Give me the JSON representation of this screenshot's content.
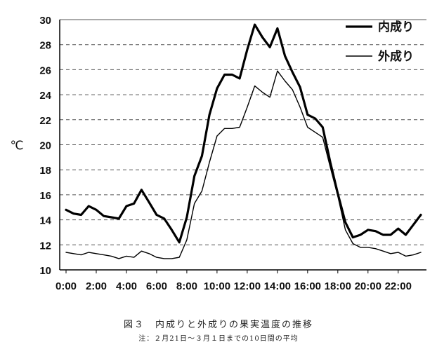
{
  "chart_data": {
    "type": "line",
    "ylabel": "℃",
    "ylim": [
      10,
      30
    ],
    "yticks": [
      10,
      12,
      14,
      16,
      18,
      20,
      22,
      24,
      26,
      28,
      30
    ],
    "xlim": [
      0,
      23.5
    ],
    "xticks": [
      "0:00",
      "2:00",
      "4:00",
      "6:00",
      "8:00",
      "10:00",
      "12:00",
      "14:00",
      "16:00",
      "18:00",
      "20:00",
      "22:00"
    ],
    "grid": "horizontal dashed",
    "legend_position": "top-right",
    "x": [
      0,
      0.5,
      1,
      1.5,
      2,
      2.5,
      3,
      3.5,
      4,
      4.5,
      5,
      5.5,
      6,
      6.5,
      7,
      7.5,
      8,
      8.5,
      9,
      9.5,
      10,
      10.5,
      11,
      11.5,
      12,
      12.5,
      13,
      13.5,
      14,
      14.5,
      15,
      15.5,
      16,
      16.5,
      17,
      17.5,
      18,
      18.5,
      19,
      19.5,
      20,
      20.5,
      21,
      21.5,
      22,
      22.5,
      23,
      23.5
    ],
    "series": [
      {
        "name": "内成り",
        "color": "#000000",
        "values": [
          14.8,
          14.5,
          14.4,
          15.1,
          14.8,
          14.3,
          14.2,
          14.1,
          15.1,
          15.3,
          16.4,
          15.4,
          14.4,
          14.1,
          13.2,
          12.2,
          14.2,
          17.5,
          19.1,
          22.4,
          24.5,
          25.6,
          25.6,
          25.3,
          27.6,
          29.6,
          28.6,
          27.8,
          29.3,
          27.1,
          25.8,
          24.6,
          22.4,
          22.1,
          21.4,
          18.6,
          16.1,
          13.8,
          12.6,
          12.8,
          13.2,
          13.1,
          12.8,
          12.8,
          13.3,
          12.8,
          13.6,
          14.4
        ]
      },
      {
        "name": "外成り",
        "color": "#000000",
        "values": [
          11.4,
          11.3,
          11.2,
          11.4,
          11.3,
          11.2,
          11.1,
          10.9,
          11.1,
          11.0,
          11.5,
          11.3,
          11.0,
          10.9,
          10.9,
          11.0,
          12.4,
          15.3,
          16.3,
          18.6,
          20.7,
          21.3,
          21.3,
          21.4,
          23.0,
          24.7,
          24.2,
          23.8,
          25.9,
          25.1,
          24.4,
          23.0,
          21.4,
          21.0,
          20.6,
          18.2,
          15.9,
          13.2,
          12.1,
          11.8,
          11.8,
          11.7,
          11.5,
          11.3,
          11.4,
          11.1,
          11.2,
          11.4
        ]
      }
    ]
  },
  "caption": {
    "title": "図３　内成りと外成りの果実温度の推移",
    "note": "注：２月21日～３月１日までの10日間の平均"
  }
}
